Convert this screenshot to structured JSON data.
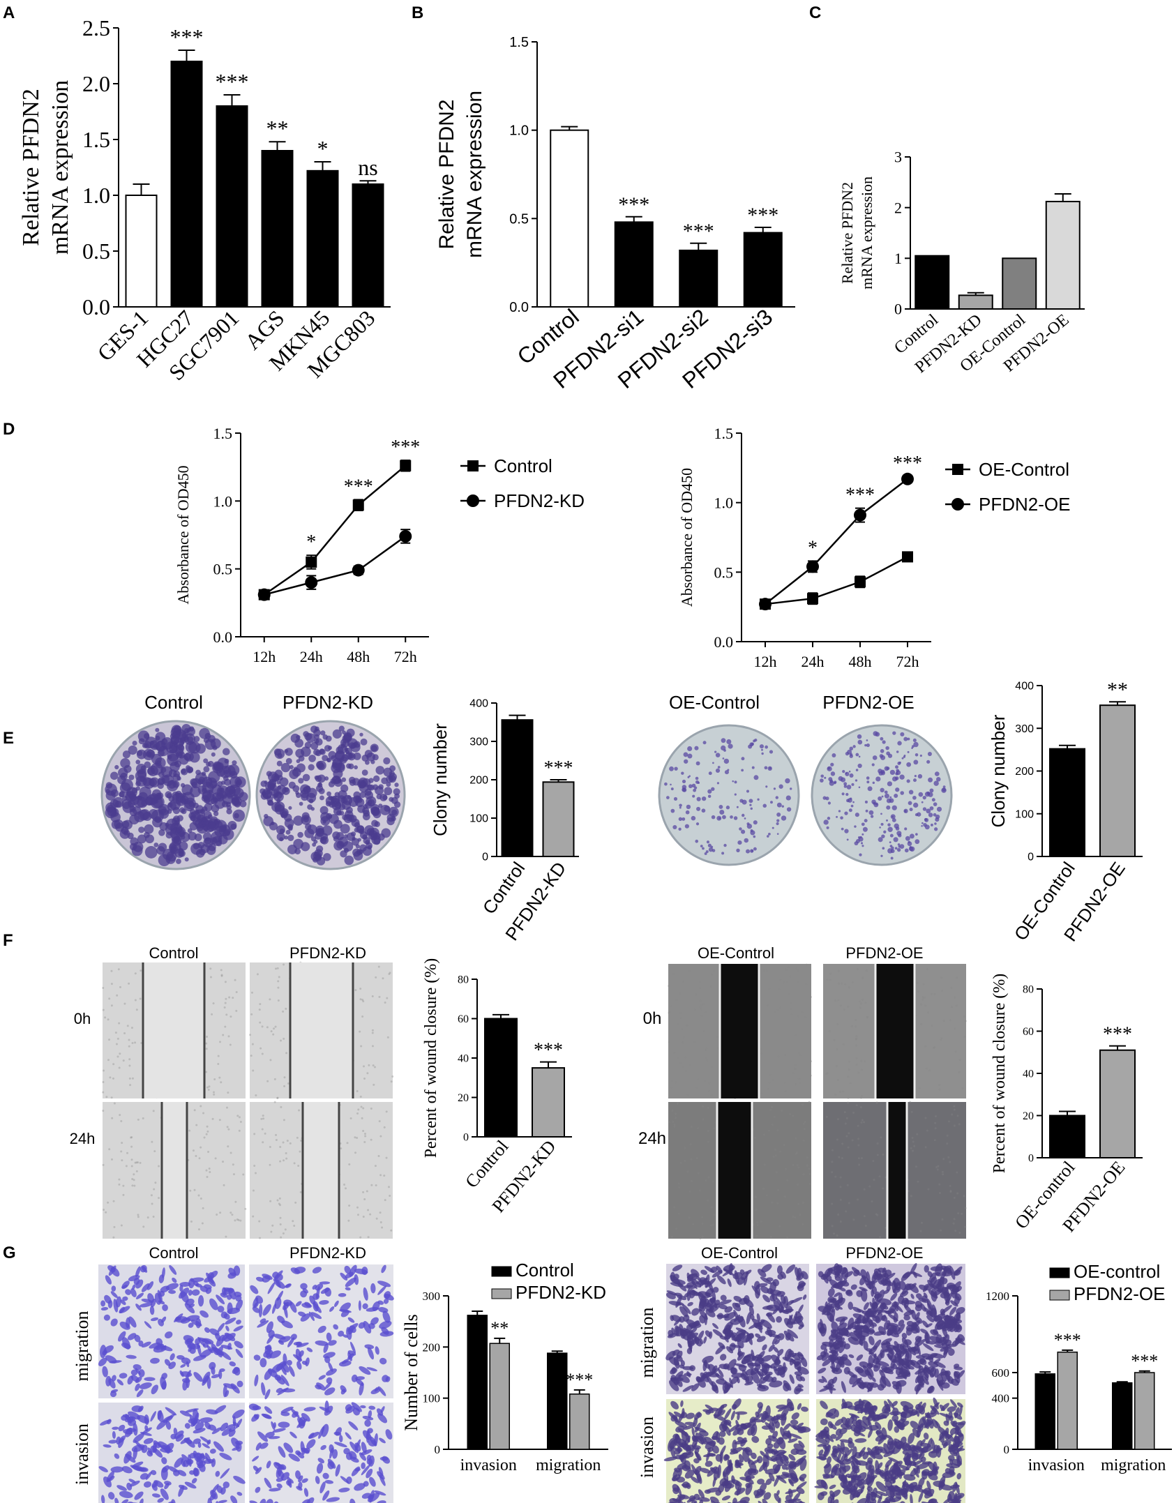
{
  "panel_letters": [
    "A",
    "B",
    "C",
    "D",
    "E",
    "F",
    "G"
  ],
  "colors": {
    "black": "#000000",
    "white": "#ffffff",
    "mid_gray": "#808080",
    "light_gray": "#d9d9d9",
    "bar_gray": "#a6a6a6",
    "crystal_violet": "#5b4a9e",
    "plate_bg": "#c7ccd0"
  },
  "chart_data": [
    {
      "panel": "A",
      "type": "bar",
      "categories": [
        "GES-1",
        "HGC27",
        "SGC7901",
        "AGS",
        "MKN45",
        "MGC803"
      ],
      "values": [
        1.0,
        2.2,
        1.8,
        1.4,
        1.22,
        1.1
      ],
      "errors": [
        0.1,
        0.1,
        0.1,
        0.08,
        0.08,
        0.03
      ],
      "fills": [
        "white",
        "black",
        "black",
        "black",
        "black",
        "black"
      ],
      "significance": [
        "",
        "***",
        "***",
        "**",
        "*",
        "ns"
      ],
      "ylabel": "Relative PFDN2 mRNA expression",
      "ylim": [
        0,
        2.5
      ],
      "yticks": [
        "0.0",
        "0.5",
        "1.0",
        "1.5",
        "2.0",
        "2.5"
      ]
    },
    {
      "panel": "B",
      "type": "bar",
      "categories": [
        "Control",
        "PFDN2-si1",
        "PFDN2-si2",
        "PFDN2-si3"
      ],
      "values": [
        1.0,
        0.48,
        0.32,
        0.42
      ],
      "errors": [
        0.02,
        0.03,
        0.04,
        0.03
      ],
      "fills": [
        "white",
        "black",
        "black",
        "black"
      ],
      "significance": [
        "",
        "***",
        "***",
        "***"
      ],
      "ylabel": "Relative PFDN2 mRNA expression",
      "ylim": [
        0,
        1.5
      ],
      "yticks": [
        "0.0",
        "0.5",
        "1.0",
        "1.5"
      ]
    },
    {
      "panel": "C",
      "type": "bar",
      "categories": [
        "Control",
        "PFDN2-KD",
        "OE-Control",
        "PFDN2-OE"
      ],
      "values": [
        1.05,
        0.27,
        1.0,
        2.12
      ],
      "errors": [
        0.0,
        0.05,
        0.0,
        0.15
      ],
      "fills": [
        "black",
        "gray",
        "midgray",
        "lightgray"
      ],
      "ylabel": "Relative PFDN2 mRNA expression",
      "ylim": [
        0,
        3
      ],
      "yticks": [
        "0",
        "1",
        "2",
        "3"
      ]
    },
    {
      "panel": "D-left",
      "type": "line",
      "x": [
        "12h",
        "24h",
        "48h",
        "72h"
      ],
      "series": [
        {
          "name": "Control",
          "values": [
            0.31,
            0.55,
            0.97,
            1.26
          ],
          "errors": [
            0.03,
            0.05,
            0.04,
            0.04
          ],
          "marker": "square"
        },
        {
          "name": "PFDN2-KD",
          "values": [
            0.31,
            0.4,
            0.49,
            0.74
          ],
          "errors": [
            0.03,
            0.05,
            0.03,
            0.05
          ],
          "marker": "circle"
        }
      ],
      "significance": [
        "",
        "*",
        "***",
        "***"
      ],
      "ylabel": "Absorbance of OD450",
      "ylim": [
        0,
        1.5
      ],
      "yticks": [
        "0.0",
        "0.5",
        "1.0",
        "1.5"
      ]
    },
    {
      "panel": "D-right",
      "type": "line",
      "x": [
        "12h",
        "24h",
        "48h",
        "72h"
      ],
      "series": [
        {
          "name": "OE-Control",
          "values": [
            0.27,
            0.31,
            0.43,
            0.61
          ],
          "errors": [
            0.02,
            0.04,
            0.04,
            0.03
          ],
          "marker": "square"
        },
        {
          "name": "PFDN2-OE",
          "values": [
            0.27,
            0.54,
            0.91,
            1.17
          ],
          "errors": [
            0.02,
            0.04,
            0.05,
            0.02
          ],
          "marker": "circle"
        }
      ],
      "significance": [
        "",
        "*",
        "***",
        "***"
      ],
      "ylabel": "Absorbance of OD450",
      "ylim": [
        0,
        1.5
      ],
      "yticks": [
        "0.0",
        "0.5",
        "1.0",
        "1.5"
      ]
    },
    {
      "panel": "E-left",
      "type": "bar",
      "categories": [
        "Control",
        "PFDN2-KD"
      ],
      "values": [
        356,
        194
      ],
      "errors": [
        12,
        6
      ],
      "fills": [
        "black",
        "gray"
      ],
      "significance": [
        "",
        "***"
      ],
      "ylabel": "Clony number",
      "ylim": [
        0,
        400
      ],
      "yticks": [
        "0",
        "100",
        "200",
        "300",
        "400"
      ]
    },
    {
      "panel": "E-right",
      "type": "bar",
      "categories": [
        "OE-Control",
        "PFDN2-OE"
      ],
      "values": [
        252,
        354
      ],
      "errors": [
        8,
        8
      ],
      "fills": [
        "black",
        "gray"
      ],
      "significance": [
        "",
        "**"
      ],
      "ylabel": "Clony number",
      "ylim": [
        0,
        400
      ],
      "yticks": [
        "0",
        "100",
        "200",
        "300",
        "400"
      ]
    },
    {
      "panel": "F-left",
      "type": "bar",
      "categories": [
        "Control",
        "PFDN2-KD"
      ],
      "values": [
        60,
        35
      ],
      "errors": [
        2,
        3
      ],
      "fills": [
        "black",
        "gray"
      ],
      "significance": [
        "",
        "***"
      ],
      "ylabel": "Percent of wound closure (%)",
      "ylim": [
        0,
        80
      ],
      "yticks": [
        "0",
        "20",
        "40",
        "60",
        "80"
      ]
    },
    {
      "panel": "F-right",
      "type": "bar",
      "categories": [
        "OE-control",
        "PFDN2-OE"
      ],
      "values": [
        20,
        51
      ],
      "errors": [
        2,
        2
      ],
      "fills": [
        "black",
        "gray"
      ],
      "significance": [
        "",
        "***"
      ],
      "ylabel": "Percent of wound closure (%)",
      "ylim": [
        0,
        80
      ],
      "yticks": [
        "0",
        "20",
        "40",
        "60",
        "80"
      ]
    },
    {
      "panel": "G-left",
      "type": "bar",
      "categories": [
        "invasion",
        "migration"
      ],
      "series": [
        {
          "name": "Control",
          "values": [
            262,
            188
          ],
          "errors": [
            8,
            4
          ]
        },
        {
          "name": "PFDN2-KD",
          "values": [
            207,
            108
          ],
          "errors": [
            10,
            8
          ]
        }
      ],
      "significance": [
        "**",
        "***"
      ],
      "ylabel": "Number of cells",
      "ylim": [
        0,
        300
      ],
      "yticks": [
        "0",
        "100",
        "200",
        "300"
      ]
    },
    {
      "panel": "G-right",
      "type": "bar",
      "categories": [
        "invasion",
        "migration"
      ],
      "series": [
        {
          "name": "OE-control",
          "values": [
            590,
            520
          ],
          "errors": [
            15,
            8
          ]
        },
        {
          "name": "PFDN2-OE",
          "values": [
            760,
            600
          ],
          "errors": [
            15,
            12
          ]
        }
      ],
      "significance": [
        "***",
        "***"
      ],
      "ylabel": null,
      "ylim": [
        0,
        1200
      ],
      "yticks": [
        "0",
        "400",
        "600",
        "1200"
      ]
    }
  ],
  "images": {
    "E": {
      "left_labels": [
        "Control",
        "PFDN2-KD"
      ],
      "right_labels": [
        "OE-Control",
        "PFDN2-OE"
      ]
    },
    "F": {
      "left_labels": [
        "Control",
        "PFDN2-KD"
      ],
      "right_labels": [
        "OE-Control",
        "PFDN2-OE"
      ],
      "row_labels": [
        "0h",
        "24h"
      ]
    },
    "G": {
      "left_labels": [
        "Control",
        "PFDN2-KD"
      ],
      "right_labels": [
        "OE-Control",
        "PFDN2-OE"
      ],
      "row_labels": [
        "migration",
        "invasion"
      ]
    }
  }
}
